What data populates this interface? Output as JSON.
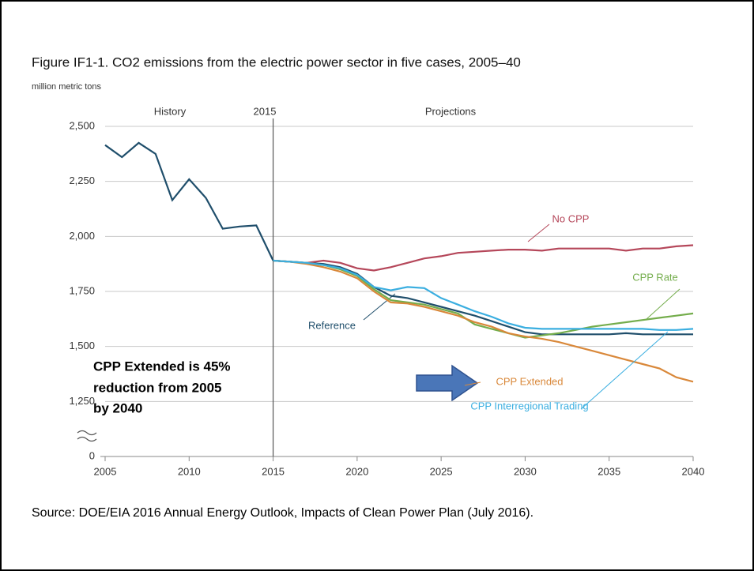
{
  "chart_data": {
    "type": "line",
    "title": "Figure IF1-1. CO2 emissions from the electric power sector in five cases, 2005–40",
    "subtitle": "million metric tons",
    "annotations": [
      "2015",
      "Projections"
    ],
    "note_lines": [
      "CPP Extended is 45%",
      "reduction from 2005",
      "by 2040"
    ],
    "source": "Source: DOE/EIA 2016 Annual Energy Outlook, Impacts of Clean Power Plan (July 2016).",
    "x": [
      2005,
      2006,
      2007,
      2008,
      2009,
      2010,
      2011,
      2012,
      2013,
      2014,
      2015,
      2016,
      2017,
      2018,
      2019,
      2020,
      2021,
      2022,
      2023,
      2024,
      2025,
      2026,
      2027,
      2028,
      2029,
      2030,
      2031,
      2032,
      2033,
      2034,
      2035,
      2036,
      2037,
      2038,
      2039,
      2040
    ],
    "xlim": [
      2005,
      2040
    ],
    "xticks": [
      2005,
      2010,
      2015,
      2020,
      2025,
      2030,
      2035,
      2040
    ],
    "ylim": [
      1000,
      2500
    ],
    "yticks": [
      0,
      {
        "value": 1250,
        "label": "1,250"
      },
      {
        "value": 1500,
        "label": "1,500"
      },
      {
        "value": 1750,
        "label": "1,750"
      },
      {
        "value": 2000,
        "label": "2,000"
      },
      {
        "value": 2250,
        "label": "2,250"
      },
      {
        "value": 2500,
        "label": "2,500"
      }
    ],
    "axis_break": true,
    "grid": true,
    "series": [
      {
        "name": "History",
        "color": "#1f4e6b",
        "values": [
          2415,
          2360,
          2425,
          2375,
          2165,
          2260,
          2175,
          2035,
          2045,
          2050,
          1890,
          null,
          null,
          null,
          null,
          null,
          null,
          null,
          null,
          null,
          null,
          null,
          null,
          null,
          null,
          null,
          null,
          null,
          null,
          null,
          null,
          null,
          null,
          null,
          null,
          null
        ]
      },
      {
        "name": "Reference",
        "color": "#1f4e6b",
        "values": [
          null,
          null,
          null,
          null,
          null,
          null,
          null,
          null,
          null,
          null,
          1890,
          1885,
          1880,
          1875,
          1860,
          1830,
          1770,
          1730,
          1720,
          1700,
          1680,
          1660,
          1640,
          1615,
          1590,
          1565,
          1555,
          1555,
          1555,
          1555,
          1555,
          1560,
          1555,
          1555,
          1555,
          1555
        ]
      },
      {
        "name": "No CPP",
        "color": "#b5475a",
        "values": [
          null,
          null,
          null,
          null,
          null,
          null,
          null,
          null,
          null,
          null,
          1890,
          1885,
          1880,
          1890,
          1880,
          1855,
          1845,
          1860,
          1880,
          1900,
          1910,
          1925,
          1930,
          1935,
          1940,
          1940,
          1935,
          1945,
          1945,
          1945,
          1945,
          1935,
          1945,
          1945,
          1955,
          1960
        ]
      },
      {
        "name": "CPP Rate",
        "color": "#74ad4c",
        "values": [
          null,
          null,
          null,
          null,
          null,
          null,
          null,
          null,
          null,
          null,
          1890,
          1885,
          1880,
          1870,
          1850,
          1820,
          1760,
          1710,
          1700,
          1690,
          1670,
          1650,
          1600,
          1580,
          1560,
          1540,
          1550,
          1560,
          1575,
          1590,
          1600,
          1610,
          1620,
          1630,
          1640,
          1650
        ]
      },
      {
        "name": "CPP Extended",
        "color": "#d9883a",
        "values": [
          null,
          null,
          null,
          null,
          null,
          null,
          null,
          null,
          null,
          null,
          1890,
          1885,
          1875,
          1860,
          1840,
          1810,
          1750,
          1700,
          1695,
          1680,
          1660,
          1640,
          1610,
          1590,
          1560,
          1545,
          1535,
          1520,
          1500,
          1480,
          1460,
          1440,
          1420,
          1400,
          1360,
          1340
        ]
      },
      {
        "name": "CPP Interregional Trading",
        "color": "#3aaee0",
        "values": [
          null,
          null,
          null,
          null,
          null,
          null,
          null,
          null,
          null,
          null,
          1890,
          1885,
          1880,
          1870,
          1855,
          1825,
          1770,
          1755,
          1770,
          1765,
          1720,
          1690,
          1660,
          1635,
          1605,
          1585,
          1580,
          1580,
          1580,
          1580,
          1580,
          1580,
          1580,
          1575,
          1575,
          1580
        ]
      }
    ]
  }
}
